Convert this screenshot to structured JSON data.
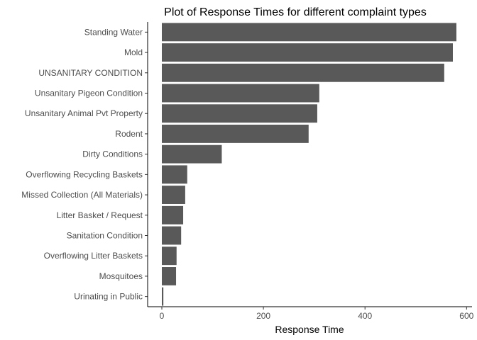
{
  "chart_data": {
    "type": "bar",
    "orientation": "horizontal",
    "title": "Plot of Response Times for different complaint types",
    "xlabel": "Response Time",
    "ylabel": "",
    "xlim": [
      0,
      600
    ],
    "x_ticks": [
      0,
      200,
      400,
      600
    ],
    "grid": false,
    "bar_color": "#595959",
    "categories": [
      "Standing Water",
      "Mold",
      "UNSANITARY CONDITION",
      "Unsanitary Pigeon Condition",
      "Unsanitary Animal Pvt Property",
      "Rodent",
      "Dirty Conditions",
      "Overflowing Recycling Baskets",
      "Missed Collection (All Materials)",
      "Litter Basket / Request",
      "Sanitation Condition",
      "Overflowing Litter Baskets",
      "Mosquitoes",
      "Urinating in Public"
    ],
    "values": [
      580,
      573,
      556,
      310,
      306,
      289,
      118,
      50,
      46,
      42,
      38,
      29,
      28,
      3
    ]
  }
}
